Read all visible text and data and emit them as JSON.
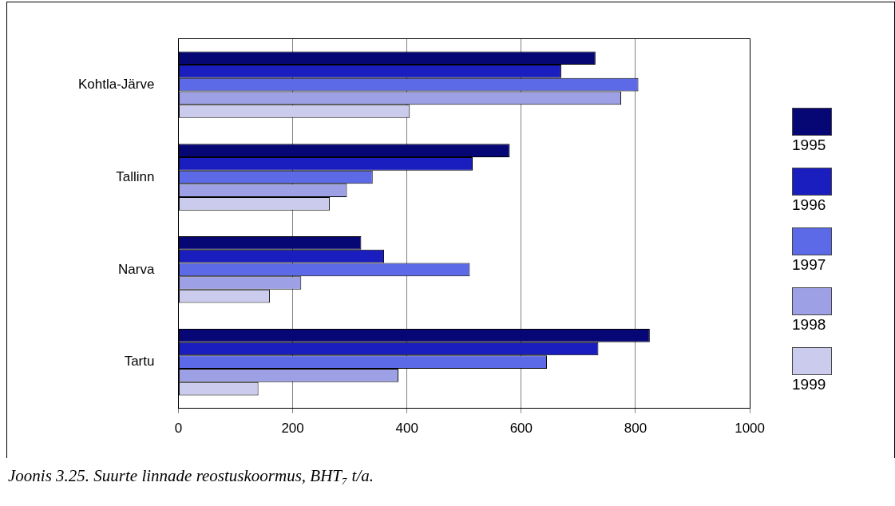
{
  "chart_data": {
    "type": "bar",
    "orientation": "horizontal",
    "categories": [
      "Kohtla-Järve",
      "Tallinn",
      "Narva",
      "Tartu"
    ],
    "series": [
      {
        "name": "1995",
        "color": "#060675",
        "values": [
          730,
          580,
          320,
          825
        ]
      },
      {
        "name": "1996",
        "color": "#1a1ebe",
        "values": [
          670,
          515,
          360,
          735
        ]
      },
      {
        "name": "1997",
        "color": "#5c6ae8",
        "values": [
          805,
          340,
          510,
          645
        ]
      },
      {
        "name": "1998",
        "color": "#9da0e4",
        "values": [
          775,
          295,
          215,
          385
        ]
      },
      {
        "name": "1999",
        "color": "#cbcbed",
        "values": [
          405,
          265,
          160,
          140
        ]
      }
    ],
    "xlim": [
      0,
      1000
    ],
    "xticks": [
      0,
      200,
      400,
      600,
      800,
      1000
    ],
    "grid": "x",
    "legend": "right",
    "annotations": [
      "Joonis 3.25. Suurte linnade reostuskoormus, BHT₇ t/a."
    ]
  }
}
